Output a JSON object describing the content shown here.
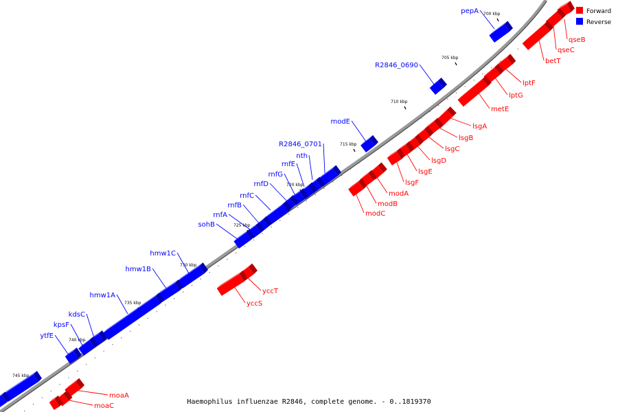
{
  "caption": "Haemophilus influenzae R2846, complete genome. - 0..1819370",
  "legend": [
    {
      "label": "Forward",
      "color": "#ff0000"
    },
    {
      "label": "Reverse",
      "color": "#0000ff"
    }
  ],
  "colors": {
    "forward": "#ff0000",
    "reverse": "#0000ff",
    "backbone": "#999999"
  },
  "chart_data": {
    "type": "genome-map",
    "ticks": [
      "700 kbp",
      "705 kbp",
      "710 kbp",
      "715 kbp",
      "720 kbp",
      "725 kbp",
      "730 kbp",
      "735 kbp",
      "740 kbp",
      "745 kbp"
    ],
    "forward_genes": [
      "qseB",
      "qseC",
      "betT",
      "lptF",
      "lptG",
      "metE",
      "lsgA",
      "lsgB",
      "lsgC",
      "lsgD",
      "lsgE",
      "lsgF",
      "modA",
      "modB",
      "modC",
      "yccT",
      "yccS",
      "moaA",
      "moaC"
    ],
    "reverse_genes": [
      "pepA",
      "R2846_0690",
      "modE",
      "R2846_0701",
      "nth",
      "rnfE",
      "rnfG",
      "rnfD",
      "rnfC",
      "rnfB",
      "rnfA",
      "sohB",
      "hmw1C",
      "hmw1B",
      "hmw1A",
      "kdsC",
      "kpsF",
      "ytfE"
    ]
  }
}
